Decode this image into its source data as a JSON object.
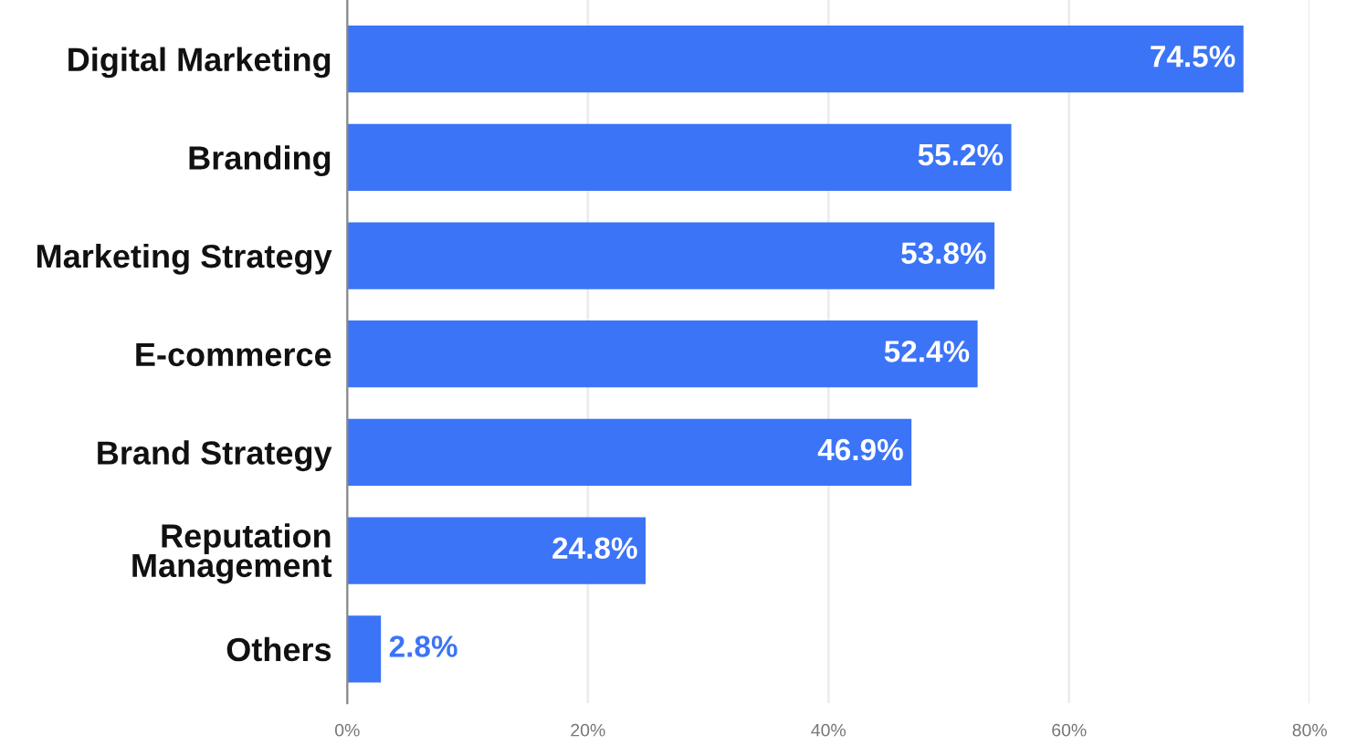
{
  "chart_data": {
    "type": "bar",
    "orientation": "horizontal",
    "categories": [
      "Digital Marketing",
      "Branding",
      "Marketing Strategy",
      "E-commerce",
      "Brand Strategy",
      "Reputation\nManagement",
      "Others"
    ],
    "values": [
      74.5,
      55.2,
      53.8,
      52.4,
      46.9,
      24.8,
      2.8
    ],
    "value_labels": [
      "74.5%",
      "55.2%",
      "53.8%",
      "52.4%",
      "46.9%",
      "24.8%",
      "2.8%"
    ],
    "color": "#3b74f7",
    "xlim": [
      0,
      80
    ],
    "xticks": [
      {
        "value": 0,
        "label": "0%"
      },
      {
        "value": 20,
        "label": "20%"
      },
      {
        "value": 40,
        "label": "40%"
      },
      {
        "value": 60,
        "label": "60%"
      },
      {
        "value": 80,
        "label": "80%"
      }
    ],
    "grid": "x",
    "legend": false
  }
}
